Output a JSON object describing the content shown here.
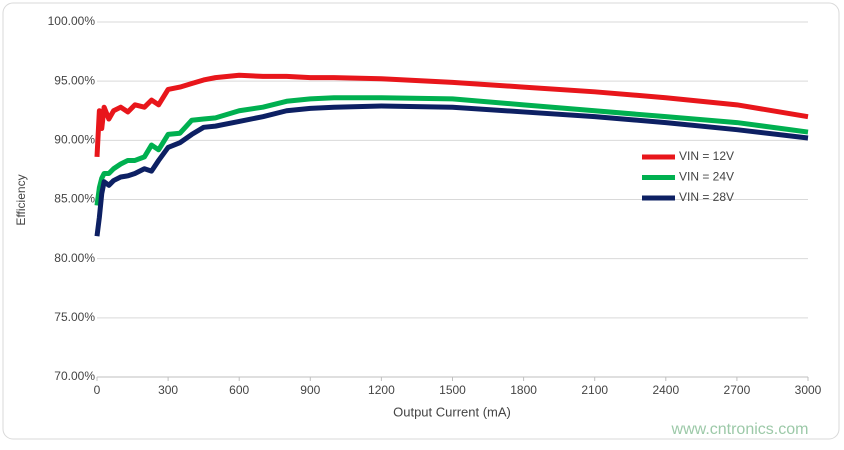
{
  "chart_data": {
    "type": "line",
    "y_axis_label": "Efficiency",
    "x_axis_label": "Output Current (mA)",
    "watermark": "www.cntronics.com",
    "x": [
      0,
      10,
      20,
      30,
      50,
      70,
      100,
      130,
      160,
      200,
      230,
      260,
      300,
      350,
      400,
      450,
      500,
      600,
      700,
      800,
      900,
      1000,
      1200,
      1500,
      1800,
      2100,
      2400,
      2700,
      3000
    ],
    "series": [
      {
        "name": "VIN = 12V",
        "color": "#e8161b",
        "values": [
          88.6,
          92.5,
          91.0,
          92.8,
          91.8,
          92.5,
          92.8,
          92.4,
          93.0,
          92.8,
          93.4,
          93.0,
          94.3,
          94.5,
          94.8,
          95.1,
          95.3,
          95.5,
          95.4,
          95.4,
          95.3,
          95.3,
          95.2,
          94.9,
          94.5,
          94.1,
          93.6,
          93.0,
          92.0
        ]
      },
      {
        "name": "VIN = 24V",
        "color": "#00b050",
        "values": [
          84.5,
          86.0,
          86.8,
          87.2,
          87.2,
          87.6,
          88.0,
          88.3,
          88.3,
          88.6,
          89.6,
          89.2,
          90.5,
          90.6,
          91.7,
          91.8,
          91.9,
          92.5,
          92.8,
          93.3,
          93.5,
          93.6,
          93.6,
          93.5,
          93.0,
          92.5,
          92.0,
          91.5,
          90.7
        ]
      },
      {
        "name": "VIN = 28V",
        "color": "#0d2063",
        "values": [
          81.9,
          83.5,
          85.5,
          86.5,
          86.2,
          86.6,
          86.9,
          87.0,
          87.2,
          87.6,
          87.4,
          88.3,
          89.4,
          89.8,
          90.5,
          91.1,
          91.2,
          91.6,
          92.0,
          92.5,
          92.7,
          92.8,
          92.9,
          92.8,
          92.4,
          92.0,
          91.5,
          90.9,
          90.2
        ]
      }
    ],
    "xlim": [
      0,
      3000
    ],
    "xticks": [
      0,
      300,
      600,
      900,
      1200,
      1500,
      1800,
      2100,
      2400,
      2700,
      3000
    ],
    "ylim": [
      70,
      100
    ],
    "yticks": [
      {
        "value": 70,
        "label": "70.00%"
      },
      {
        "value": 75,
        "label": "75.00%"
      },
      {
        "value": 80,
        "label": "80.00%"
      },
      {
        "value": 85,
        "label": "85.00%"
      },
      {
        "value": 90,
        "label": "90.00%"
      },
      {
        "value": 95,
        "label": "95.00%"
      },
      {
        "value": 100,
        "label": "100.00%"
      }
    ],
    "grid": true,
    "legend": "right"
  }
}
